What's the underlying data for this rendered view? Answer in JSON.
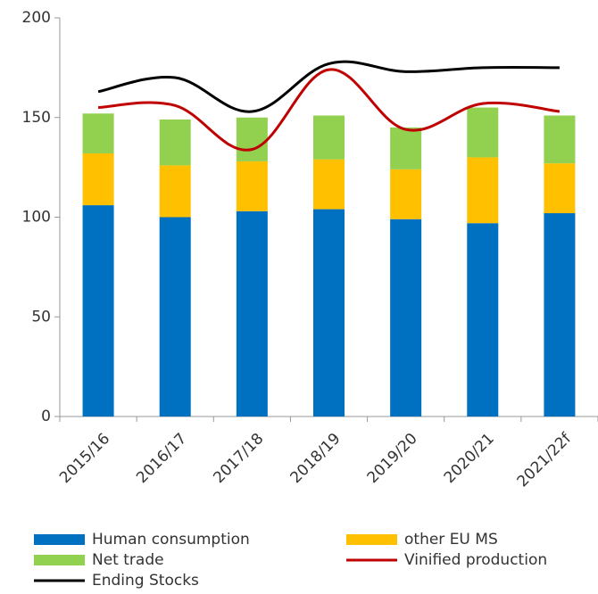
{
  "chart_data": {
    "type": "bar",
    "categories": [
      "2015/16",
      "2016/17",
      "2017/18",
      "2018/19",
      "2019/20",
      "2020/21",
      "2021/22f"
    ],
    "series": [
      {
        "name": "Human consumption",
        "type": "bar",
        "color": "#0070c0",
        "values": [
          106,
          100,
          103,
          104,
          99,
          97,
          102
        ]
      },
      {
        "name": "other EU MS",
        "type": "bar",
        "color": "#ffc000",
        "values": [
          26,
          26,
          25,
          25,
          25,
          33,
          25
        ]
      },
      {
        "name": "Net trade",
        "type": "bar",
        "color": "#92d050",
        "values": [
          20,
          23,
          22,
          22,
          21,
          25,
          24
        ]
      },
      {
        "name": "Vinified production",
        "type": "line",
        "color": "#c00000",
        "values": [
          155,
          156,
          134,
          174,
          144,
          157,
          153
        ]
      },
      {
        "name": "Ending Stocks",
        "type": "line",
        "color": "#000000",
        "values": [
          163,
          170,
          153,
          177,
          173,
          175,
          175
        ]
      }
    ],
    "ylim": [
      0,
      200
    ],
    "yticks": [
      0,
      50,
      100,
      150,
      200
    ],
    "grid": false
  }
}
